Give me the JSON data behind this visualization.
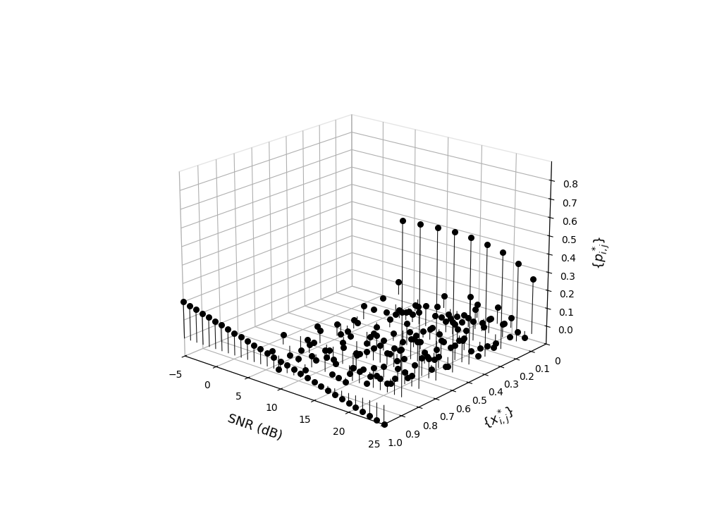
{
  "snr_range": [
    -5,
    -4,
    -3,
    -2,
    -1,
    0,
    1,
    2,
    3,
    4,
    5,
    6,
    7,
    8,
    9,
    10,
    11,
    12,
    13,
    14,
    15,
    16,
    17,
    18,
    19,
    20,
    21,
    22,
    23,
    24,
    25
  ],
  "x_range": [
    0.1,
    0.2,
    0.3,
    0.4,
    0.5,
    0.6,
    0.7,
    0.8,
    0.9,
    1.0
  ],
  "ylabel": "{p^*_{i,j}}",
  "xlabel": "SNR (dB)",
  "zlabel": "{x^*_{i,j}}",
  "background_color": "#ffffff",
  "stem_color": "#000000",
  "marker_color": "#000000",
  "zlim": [
    -0.1,
    0.95
  ],
  "snr_ticks": [
    -5,
    0,
    5,
    10,
    15,
    20,
    25
  ],
  "x_ticks": [
    0,
    0.1,
    0.2,
    0.3,
    0.4,
    0.5,
    0.6,
    0.7,
    0.8,
    0.9,
    1.0
  ],
  "p_ticks": [
    0,
    0.1,
    0.2,
    0.3,
    0.4,
    0.5,
    0.6,
    0.7,
    0.8
  ]
}
